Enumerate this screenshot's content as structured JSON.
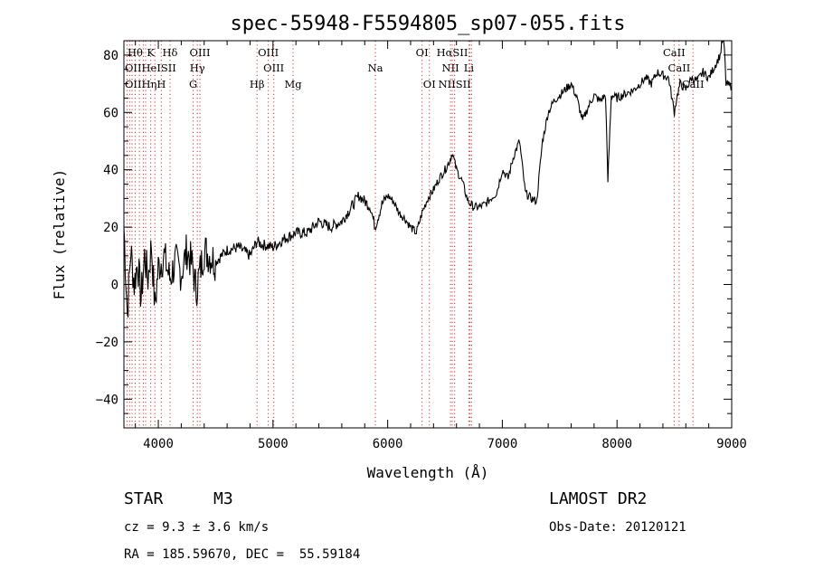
{
  "chart_data": {
    "type": "line",
    "title": "spec-55948-F5594805_sp07-055.fits",
    "xlabel": "Wavelength (Å)",
    "ylabel": "Flux (relative)",
    "xlim": [
      3700,
      9000
    ],
    "ylim": [
      -50,
      85
    ],
    "x_ticks": [
      4000,
      5000,
      6000,
      7000,
      8000,
      9000
    ],
    "y_ticks": [
      -40,
      -20,
      0,
      20,
      40,
      60,
      80
    ],
    "grid": false,
    "series": [
      {
        "x": [
          3700,
          3730,
          3760,
          3790,
          3820,
          3850,
          3880,
          3910,
          3940,
          3970,
          4000,
          4050,
          4100,
          4150,
          4200,
          4250,
          4300,
          4330,
          4400,
          4500,
          4600,
          4700,
          4800,
          4860,
          4900,
          5000,
          5100,
          5200,
          5300,
          5400,
          5500,
          5600,
          5700,
          5750,
          5800,
          5850,
          5890,
          5950,
          6000,
          6050,
          6100,
          6150,
          6200,
          6250,
          6300,
          6350,
          6400,
          6450,
          6500,
          6540,
          6563,
          6600,
          6650,
          6700,
          6750,
          6800,
          6850,
          6900,
          6950,
          7000,
          7050,
          7100,
          7150,
          7200,
          7250,
          7300,
          7350,
          7400,
          7450,
          7500,
          7550,
          7600,
          7650,
          7700,
          7750,
          7800,
          7850,
          7900,
          7920,
          7950,
          8000,
          8050,
          8100,
          8150,
          8200,
          8250,
          8300,
          8350,
          8400,
          8450,
          8500,
          8520,
          8550,
          8600,
          8650,
          8700,
          8750,
          8800,
          8850,
          8900,
          8930,
          8950,
          9000
        ],
        "y": [
          20,
          -10,
          12,
          0,
          8,
          -5,
          10,
          2,
          14,
          -8,
          6,
          10,
          2,
          8,
          4,
          12,
          6,
          -2,
          12,
          8,
          12,
          13,
          10,
          15,
          14,
          13,
          16,
          18,
          18,
          22,
          20,
          22,
          28,
          31,
          29,
          27,
          20,
          28,
          31,
          29,
          25,
          23,
          20,
          18,
          25,
          30,
          33,
          37,
          40,
          43,
          46,
          40,
          36,
          29,
          27,
          27,
          28,
          30,
          32,
          40,
          37,
          45,
          50,
          32,
          30,
          29,
          50,
          60,
          64,
          66,
          68,
          70,
          65,
          57,
          62,
          66,
          64,
          66,
          36,
          66,
          65,
          66,
          67,
          68,
          70,
          72,
          70,
          74,
          73,
          72,
          60,
          65,
          70,
          68,
          72,
          71,
          74,
          72,
          76,
          80,
          88,
          70,
          69
        ]
      }
    ],
    "spectral_lines": [
      {
        "label": "Hθ",
        "wl": 3798,
        "row": 1
      },
      {
        "label": "K",
        "wl": 3934,
        "row": 1
      },
      {
        "label": "Hδ",
        "wl": 4102,
        "row": 1
      },
      {
        "label": "OIII",
        "wl": 4363,
        "row": 1
      },
      {
        "label": "OIII",
        "wl": 4959,
        "row": 1
      },
      {
        "label": "OI",
        "wl": 6300,
        "row": 1
      },
      {
        "label": "HαSII",
        "wl": 6563,
        "row": 1
      },
      {
        "label": "CaII",
        "wl": 8498,
        "row": 1
      },
      {
        "label": "OIIHeISII",
        "wl": 3727,
        "row": 2
      },
      {
        "label": "Hγ",
        "wl": 4340,
        "row": 2
      },
      {
        "label": "OIII",
        "wl": 5007,
        "row": 2
      },
      {
        "label": "Na",
        "wl": 5893,
        "row": 2
      },
      {
        "label": "NII",
        "wl": 6548,
        "row": 2
      },
      {
        "label": "Li",
        "wl": 6708,
        "row": 2
      },
      {
        "label": "CaII",
        "wl": 8542,
        "row": 2
      },
      {
        "label": "OIIHηH",
        "wl": 3727,
        "row": 3
      },
      {
        "label": "G",
        "wl": 4304,
        "row": 3
      },
      {
        "label": "Hβ",
        "wl": 4861,
        "row": 3
      },
      {
        "label": "Mg",
        "wl": 5175,
        "row": 3
      },
      {
        "label": "OI",
        "wl": 6364,
        "row": 3
      },
      {
        "label": "NIISII",
        "wl": 6584,
        "row": 3
      },
      {
        "label": "CaII",
        "wl": 8662,
        "row": 3
      }
    ],
    "line_markers": [
      3727,
      3750,
      3771,
      3798,
      3835,
      3869,
      3889,
      3934,
      3970,
      4026,
      4102,
      4304,
      4340,
      4363,
      4861,
      4959,
      5007,
      5175,
      5893,
      6300,
      6364,
      6548,
      6563,
      6584,
      6708,
      6717,
      6731,
      8498,
      8542,
      8662
    ]
  },
  "info": {
    "class": "STAR",
    "subclass": "M3",
    "cz": "cz = 9.3 ± 3.6 km/s",
    "radec": "RA = 185.59670, DEC =  55.59184",
    "survey": "LAMOST DR2",
    "obsdate": "Obs-Date: 20120121"
  }
}
